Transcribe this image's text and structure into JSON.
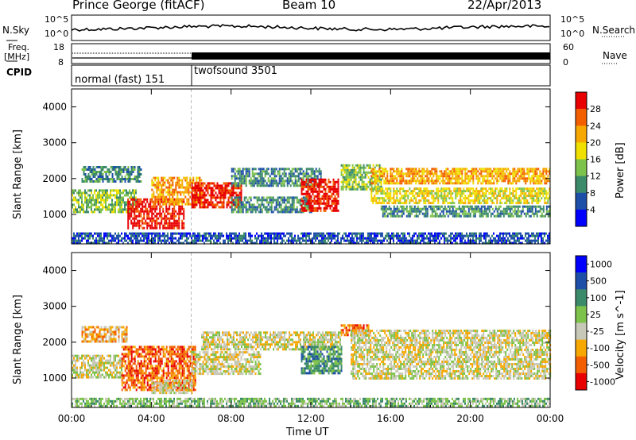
{
  "header": {
    "station": "Prince George (fitACF)",
    "beam": "Beam 10",
    "date": "22/Apr/2013"
  },
  "panels": {
    "nsky": {
      "label": "N.Sky",
      "ticks": [
        "10^5",
        "10^0"
      ]
    },
    "nsearch": {
      "label": "N.Search",
      "ticks": [
        "10^5",
        "10^0"
      ]
    },
    "freq": {
      "label_line1": "Freq.",
      "label_line2": "[MHz]",
      "ticks": [
        "18",
        "8"
      ]
    },
    "nave": {
      "label": "Nave",
      "ticks": [
        "60",
        "0"
      ]
    },
    "cpid": {
      "label": "CPID",
      "segments": [
        {
          "name": "normal (fast) 151",
          "start_hour": 0
        },
        {
          "name": "twofsound 3501",
          "start_hour": 6
        }
      ]
    }
  },
  "colors": {
    "power": [
      "#0000ff",
      "#1e4fa8",
      "#3b8a6a",
      "#7dc24a",
      "#f0e000",
      "#f7a800",
      "#f25e00",
      "#e80000"
    ],
    "velocity": [
      "#e80000",
      "#f25e00",
      "#f7a800",
      "#c8c8b8",
      "#7dc24a",
      "#3b8a6a",
      "#1e4fa8",
      "#0000ff"
    ]
  },
  "chart_data": [
    {
      "type": "heatmap",
      "ylabel": "Slant Range [km]",
      "xlabel": "Time UT",
      "x_ticks": [
        "00:00",
        "04:00",
        "08:00",
        "12:00",
        "16:00",
        "20:00",
        "00:00"
      ],
      "xlim_hours": [
        0,
        24
      ],
      "ylim_km": [
        180,
        4500
      ],
      "y_ticks": [
        1000,
        2000,
        3000,
        4000
      ],
      "colorbar_label": "Power [dB]",
      "colorbar_ticks": [
        4,
        8,
        12,
        16,
        20,
        24,
        28
      ],
      "bands": [
        {
          "t0": 0.0,
          "t1": 3.2,
          "r0": 1050,
          "r1": 1700,
          "level": 3
        },
        {
          "t0": 0.5,
          "t1": 3.5,
          "r0": 1950,
          "r1": 2350,
          "level": 2
        },
        {
          "t0": 2.8,
          "t1": 5.6,
          "r0": 650,
          "r1": 1450,
          "level": 7
        },
        {
          "t0": 4.0,
          "t1": 6.5,
          "r0": 1300,
          "r1": 2050,
          "level": 5
        },
        {
          "t0": 6.0,
          "t1": 8.5,
          "r0": 1200,
          "r1": 1900,
          "level": 7
        },
        {
          "t0": 8.0,
          "t1": 12.0,
          "r0": 1100,
          "r1": 1500,
          "level": 2
        },
        {
          "t0": 8.0,
          "t1": 12.5,
          "r0": 1800,
          "r1": 2300,
          "level": 2
        },
        {
          "t0": 11.5,
          "t1": 13.4,
          "r0": 1100,
          "r1": 2000,
          "level": 7
        },
        {
          "t0": 13.5,
          "t1": 15.5,
          "r0": 1700,
          "r1": 2400,
          "level": 3
        },
        {
          "t0": 15.0,
          "t1": 24.0,
          "r0": 1900,
          "r1": 2300,
          "level": 5
        },
        {
          "t0": 15.0,
          "t1": 24.0,
          "r0": 1350,
          "r1": 1750,
          "level": 4
        },
        {
          "t0": 15.5,
          "t1": 24.0,
          "r0": 950,
          "r1": 1250,
          "level": 2
        },
        {
          "t0": 0.0,
          "t1": 24.0,
          "r0": 200,
          "r1": 500,
          "level": 1
        }
      ]
    },
    {
      "type": "heatmap",
      "ylabel": "Slant Range [km]",
      "xlabel": "Time UT",
      "x_ticks": [
        "00:00",
        "04:00",
        "08:00",
        "12:00",
        "16:00",
        "20:00",
        "00:00"
      ],
      "xlim_hours": [
        0,
        24
      ],
      "ylim_km": [
        180,
        4500
      ],
      "y_ticks": [
        1000,
        2000,
        3000,
        4000
      ],
      "colorbar_label": "Velocity [m s^-1]",
      "colorbar_ticks": [
        1000,
        500,
        100,
        25,
        -25,
        -100,
        -500,
        -1000
      ],
      "bands": [
        {
          "t0": 0.0,
          "t1": 2.5,
          "r0": 1050,
          "r1": 1650,
          "level": 3
        },
        {
          "t0": 0.5,
          "t1": 2.8,
          "r0": 2000,
          "r1": 2450,
          "level": 2
        },
        {
          "t0": 2.5,
          "t1": 6.2,
          "r0": 650,
          "r1": 1900,
          "level": 1
        },
        {
          "t0": 4.0,
          "t1": 6.0,
          "r0": 600,
          "r1": 950,
          "level": 3
        },
        {
          "t0": 6.0,
          "t1": 9.5,
          "r0": 1150,
          "r1": 1750,
          "level": 3
        },
        {
          "t0": 6.5,
          "t1": 13.5,
          "r0": 1800,
          "r1": 2300,
          "level": 3
        },
        {
          "t0": 11.5,
          "t1": 13.5,
          "r0": 1150,
          "r1": 1900,
          "level": 5
        },
        {
          "t0": 13.5,
          "t1": 15.0,
          "r0": 2200,
          "r1": 2500,
          "level": 1
        },
        {
          "t0": 14.0,
          "t1": 24.0,
          "r0": 1000,
          "r1": 2350,
          "level": 3
        },
        {
          "t0": 0.0,
          "t1": 24.0,
          "r0": 200,
          "r1": 450,
          "level": 4
        }
      ]
    }
  ]
}
